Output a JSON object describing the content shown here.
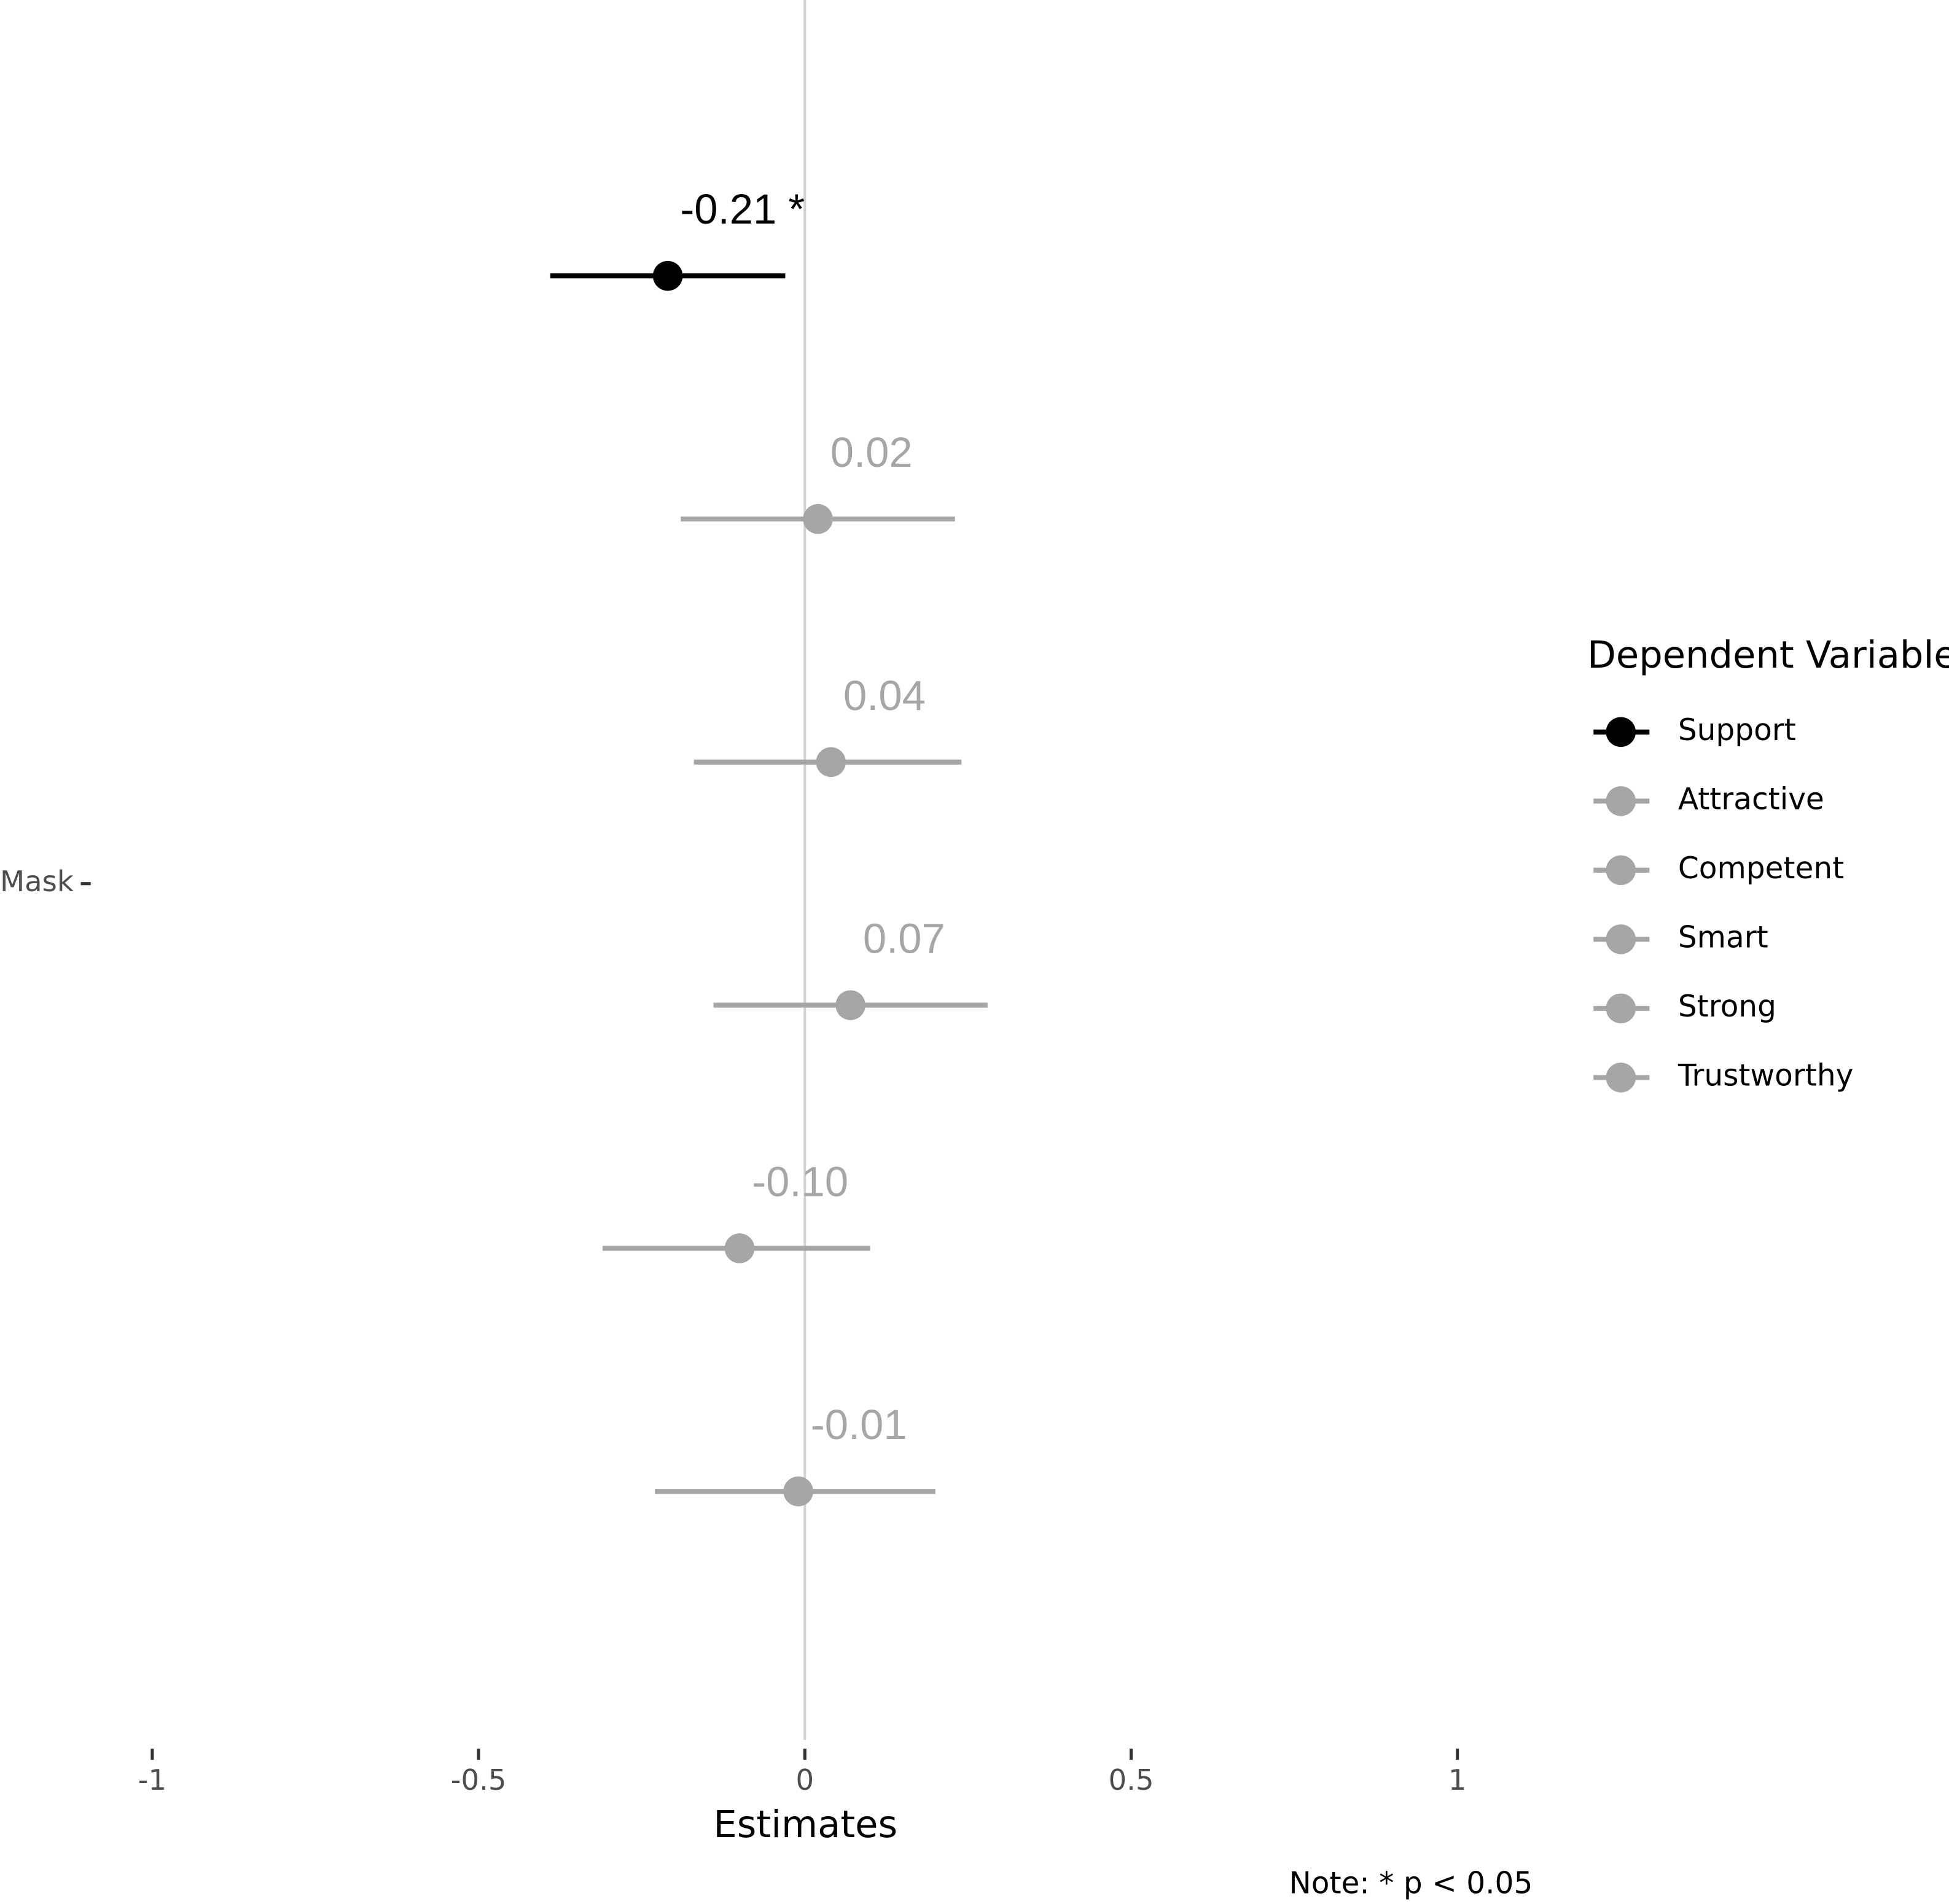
{
  "chart_data": {
    "type": "dotwhisker",
    "x_label": "Estimates",
    "categories": [
      "Mask"
    ],
    "series": [
      {
        "name": "Support",
        "color": "#000000",
        "values": [
          -0.21
        ],
        "ci_low": [
          -0.39
        ],
        "ci_high": [
          -0.03
        ],
        "value_labels": [
          "-0.21 *"
        ]
      },
      {
        "name": "Attractive",
        "color": "#a6a6a6",
        "values": [
          0.02
        ],
        "ci_low": [
          -0.19
        ],
        "ci_high": [
          0.23
        ],
        "value_labels": [
          "0.02"
        ]
      },
      {
        "name": "Competent",
        "color": "#a6a6a6",
        "values": [
          0.04
        ],
        "ci_low": [
          -0.17
        ],
        "ci_high": [
          0.24
        ],
        "value_labels": [
          "0.04"
        ]
      },
      {
        "name": "Smart",
        "color": "#a6a6a6",
        "values": [
          0.07
        ],
        "ci_low": [
          -0.14
        ],
        "ci_high": [
          0.28
        ],
        "value_labels": [
          "0.07"
        ]
      },
      {
        "name": "Strong",
        "color": "#a6a6a6",
        "values": [
          -0.1
        ],
        "ci_low": [
          -0.31
        ],
        "ci_high": [
          0.1
        ],
        "value_labels": [
          "-0.10"
        ]
      },
      {
        "name": "Trustworthy",
        "color": "#a6a6a6",
        "values": [
          -0.01
        ],
        "ci_low": [
          -0.23
        ],
        "ci_high": [
          0.2
        ],
        "value_labels": [
          "-0.01"
        ]
      }
    ],
    "xlim": [
      -1.1,
      1.1
    ],
    "xticks": [
      -1,
      -0.5,
      0,
      0.5,
      1
    ],
    "reference_line": 0,
    "reference_line_color": "#d3d3d3",
    "legend_title": "Dependent Variables",
    "legend_position": "right",
    "note": "Note: * p < 0.05"
  }
}
